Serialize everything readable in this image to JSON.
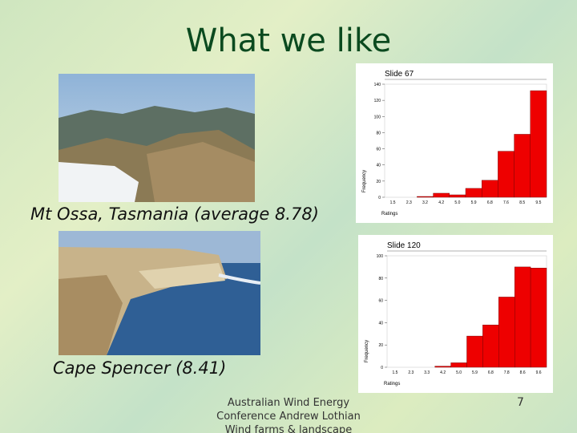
{
  "title": "What we like",
  "photos": [
    {
      "caption": "Mt Ossa, Tasmania (average 8.78)"
    },
    {
      "caption": "Cape Spencer (8.41)"
    }
  ],
  "footer": {
    "lines": [
      "Australian Wind Energy",
      "Conference Andrew Lothian",
      "Wind farms & landscape"
    ],
    "page": "7"
  },
  "chart_data": [
    {
      "type": "bar",
      "title": "Slide 67",
      "x_label": "Ratings",
      "y_label": "Frequency",
      "categories": [
        "1.5",
        "2.3",
        "3.2",
        "4.2",
        "5.0",
        "5.9",
        "6.8",
        "7.6",
        "8.5",
        "9.5"
      ],
      "values": [
        0,
        0,
        1,
        5,
        3,
        11,
        21,
        57,
        78,
        132
      ],
      "color": "#ee0000",
      "ylim": [
        0,
        140
      ],
      "yticks": [
        0,
        20,
        40,
        60,
        80,
        100,
        120,
        140
      ],
      "grid": false
    },
    {
      "type": "bar",
      "title": "Slide 120",
      "x_label": "Ratings",
      "y_label": "Frequency",
      "categories": [
        "1.5",
        "2.3",
        "3.3",
        "4.2",
        "5.0",
        "5.9",
        "6.8",
        "7.8",
        "8.6",
        "9.6"
      ],
      "values": [
        0,
        0,
        0,
        1,
        4,
        28,
        38,
        63,
        90,
        89
      ],
      "color": "#ee0000",
      "ylim": [
        0,
        100
      ],
      "yticks": [
        0,
        20,
        40,
        60,
        80,
        100
      ],
      "grid": false
    }
  ]
}
